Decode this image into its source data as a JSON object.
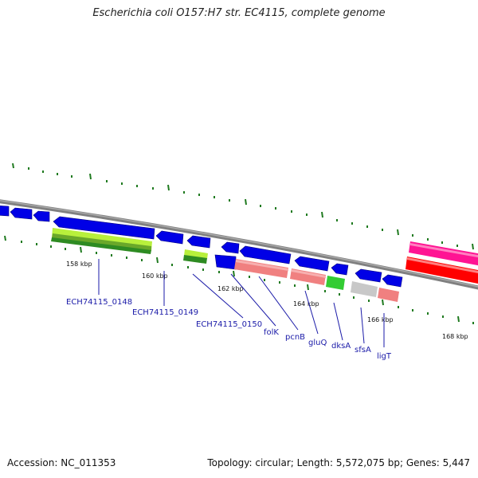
{
  "title": "Escherichia coli O157:H7 str. EC4115, complete genome",
  "footer": {
    "accession": "Accession: NC_011353",
    "topology": "Topology: circular; Length: 5,572,075 bp; Genes: 5,447"
  },
  "scale_labels": [
    "158 kbp",
    "160 kbp",
    "162 kbp",
    "164 kbp",
    "166 kbp",
    "168 kbp"
  ],
  "gene_labels": [
    "ECH74115_0148",
    "ECH74115_0149",
    "ECH74115_0150",
    "folK",
    "pcnB",
    "gluQ",
    "dksA",
    "sfsA",
    "ligT"
  ],
  "colors": {
    "backbone": "#808080",
    "cds": "#0000e6",
    "tick": "#1f7a1f",
    "label_line": "#1a1aa8",
    "label_text": "#1a1aa8",
    "cog_lime": "#b8f03c",
    "cog_green": "#2e8b22",
    "cog_salmon": "#f08080",
    "cog_brightgreen": "#33cc33",
    "cog_grey": "#c8c8c8",
    "cog_magenta": "#ff1493",
    "cog_red": "#ff0000"
  }
}
